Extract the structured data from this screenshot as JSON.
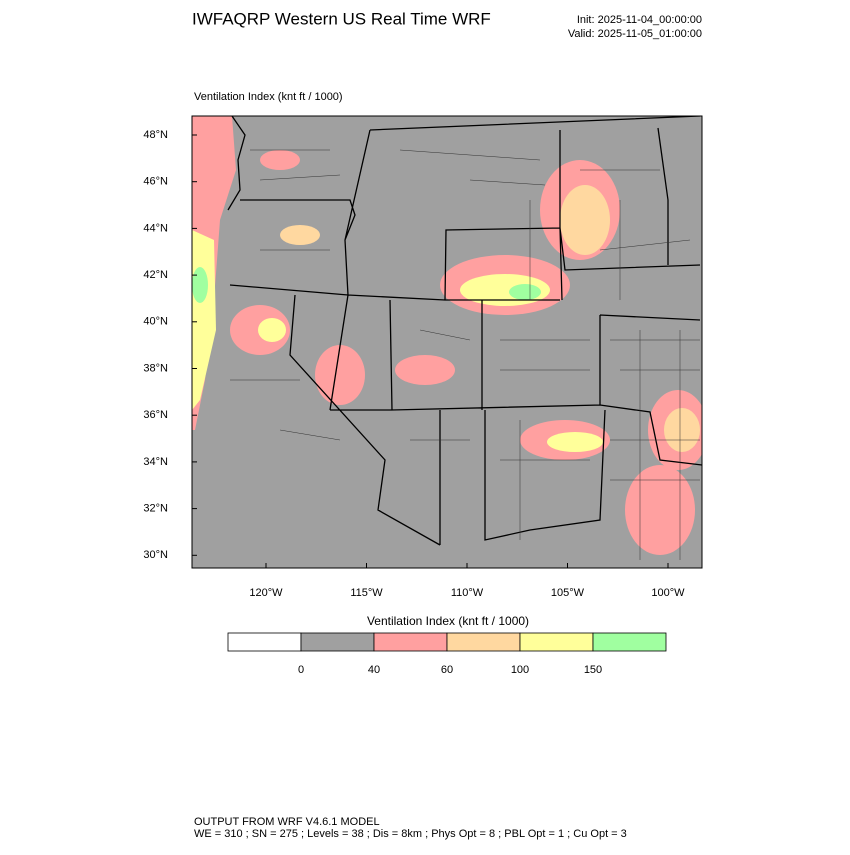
{
  "header": {
    "title": "IWFAQRP Western US Real Time WRF",
    "init": "Init: 2025-11-04_00:00:00",
    "valid": "Valid: 2025-11-05_01:00:00"
  },
  "map": {
    "subtitle": "Ventilation Index   (knt ft / 1000)",
    "lat_labels": [
      "48°N",
      "46°N",
      "44°N",
      "42°N",
      "40°N",
      "38°N",
      "36°N",
      "34°N",
      "32°N",
      "30°N"
    ],
    "lon_labels": [
      "120°W",
      "115°W",
      "110°W",
      "105°W",
      "100°W"
    ]
  },
  "colorbar": {
    "title": "Ventilation Index   (knt ft / 1000)",
    "colors": [
      "#ffffff",
      "#a0a0a0",
      "#ffa0a0",
      "#ffd8a0",
      "#ffff9a",
      "#a0ffa0"
    ],
    "labels": [
      0,
      40,
      60,
      100,
      150
    ]
  },
  "footer": {
    "line1": "OUTPUT FROM WRF V4.6.1 MODEL",
    "line2": "WE = 310 ; SN = 275 ; Levels = 38 ; Dis = 8km ; Phys Opt = 8 ; PBL Opt = 1 ; Cu Opt = 3"
  }
}
